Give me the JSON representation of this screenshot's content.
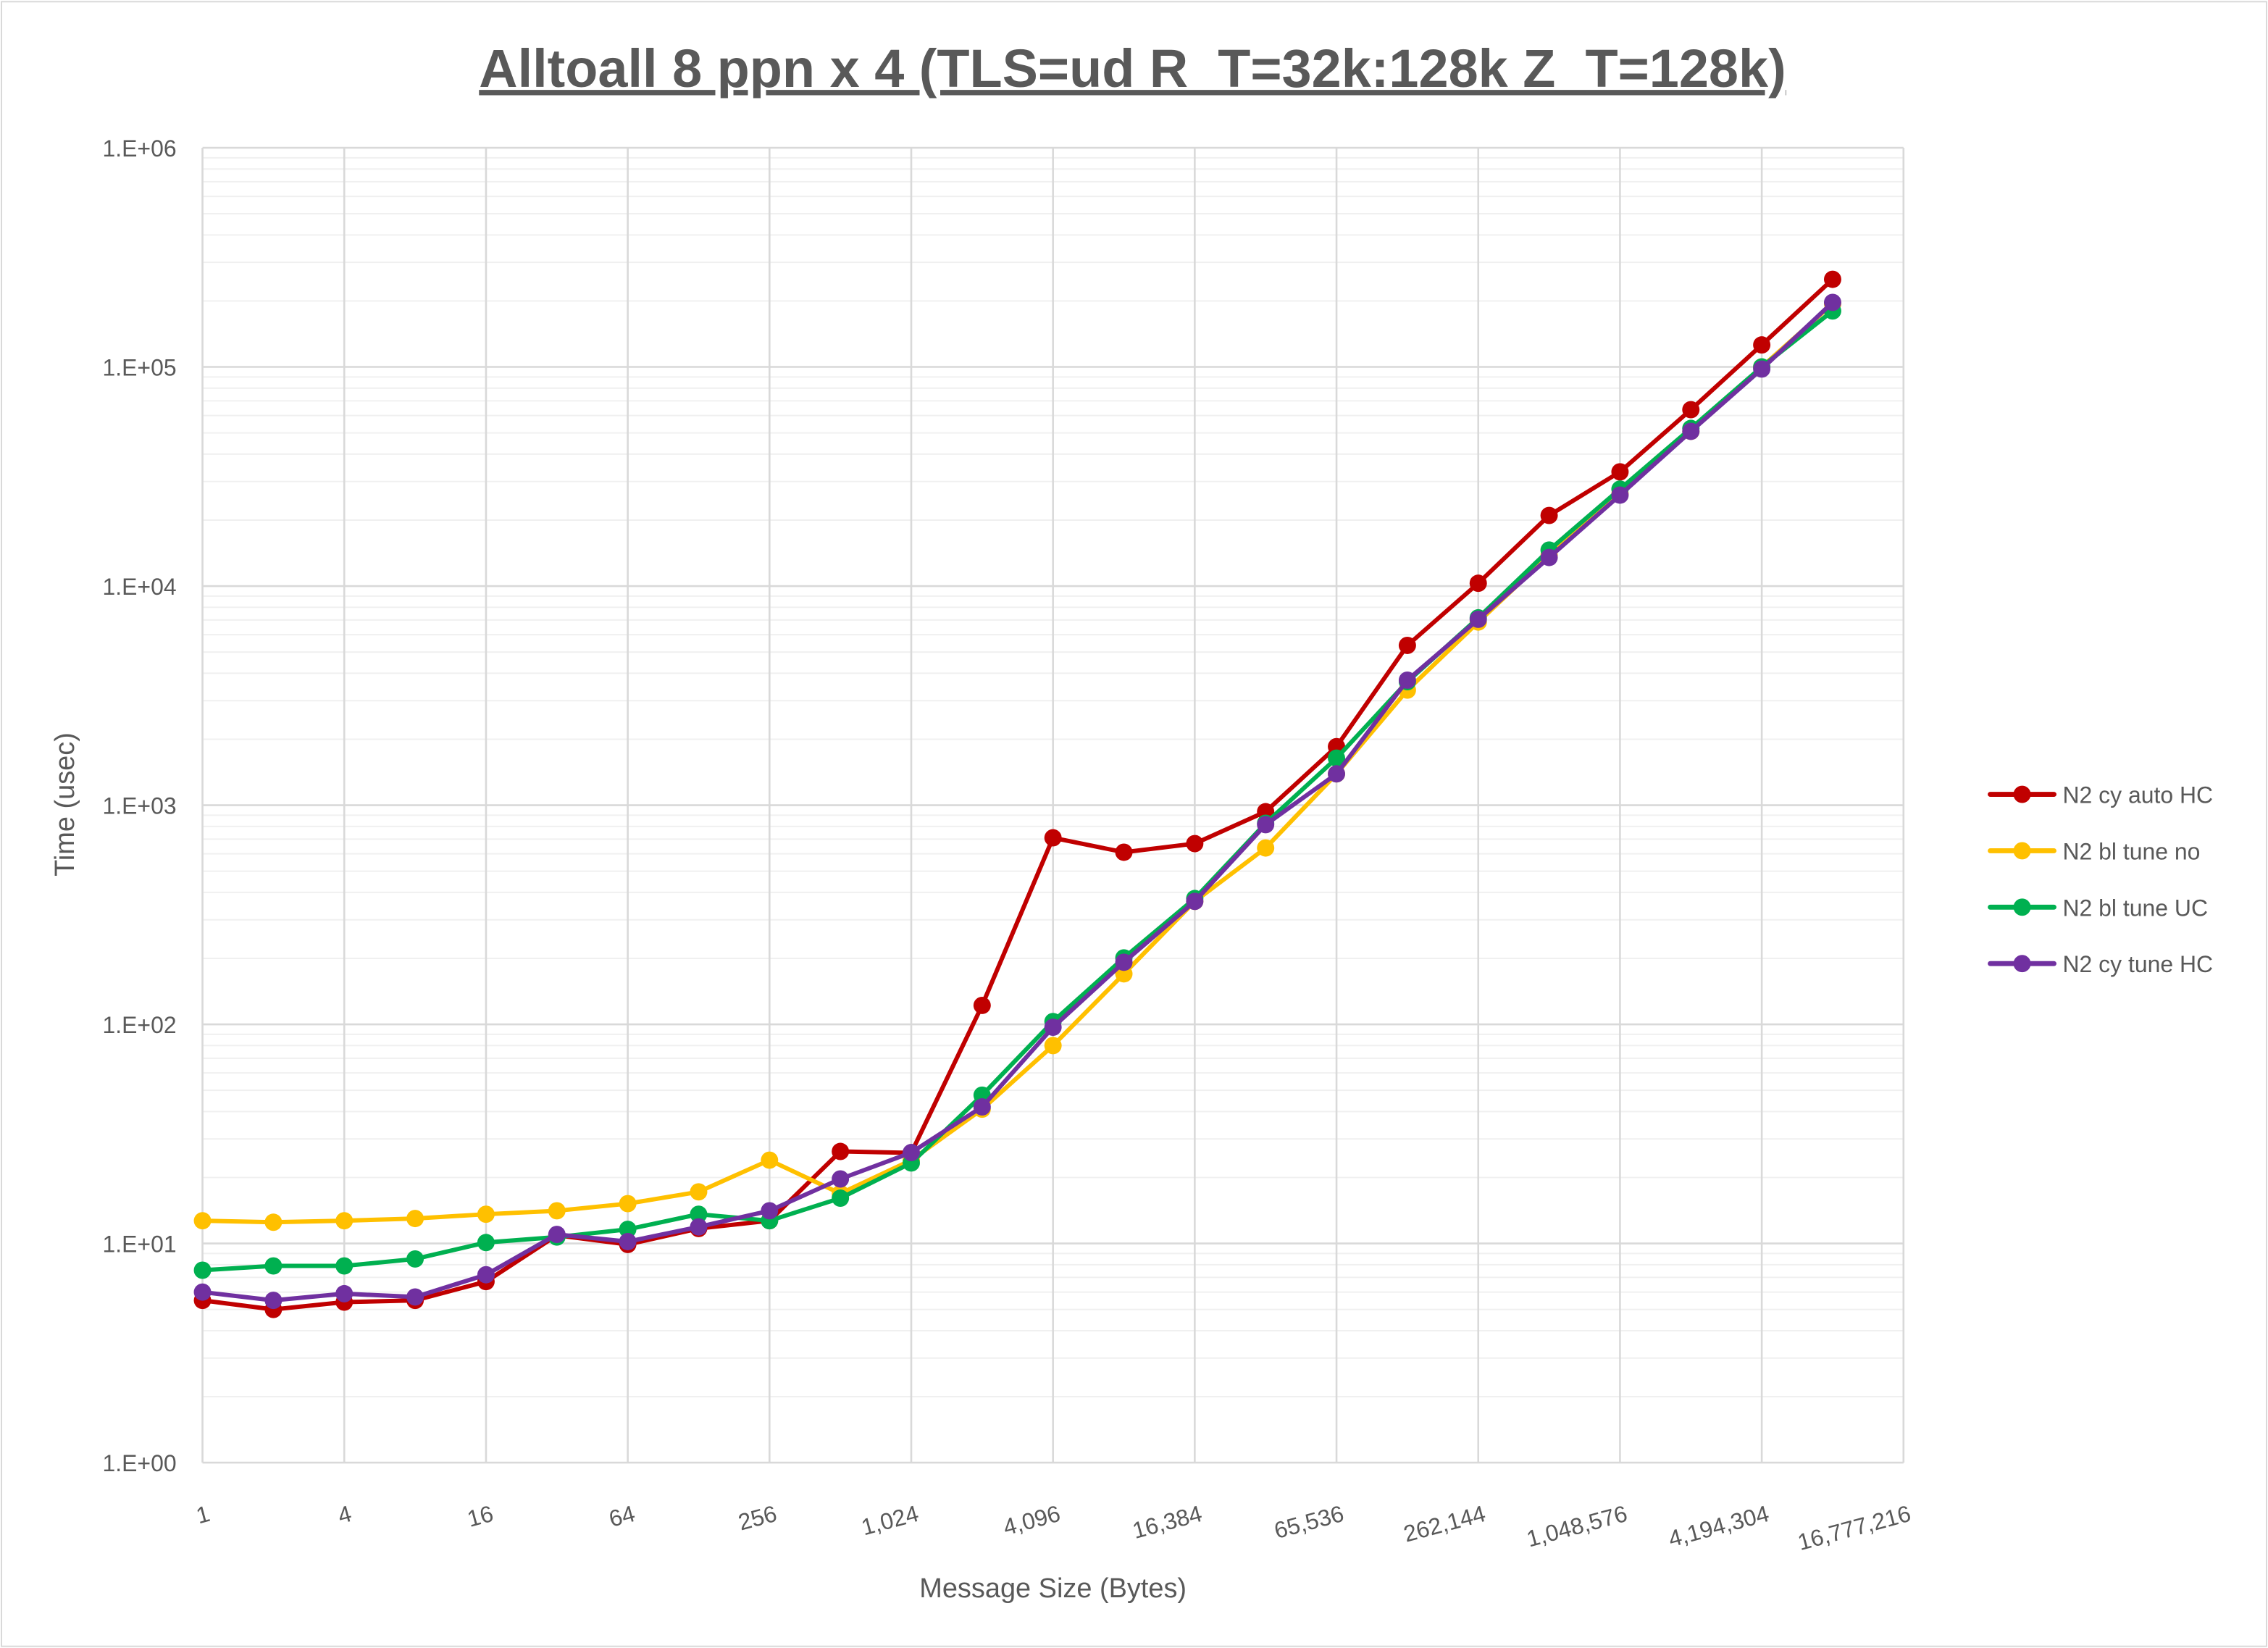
{
  "chart_data": {
    "type": "line",
    "title": "Alltoall 8 ppn x 4 (TLS=ud R_T=32k:128k Z_T=128k)",
    "xlabel": "Message Size (Bytes)",
    "ylabel": "Time (usec)",
    "x_scale": "log2",
    "y_scale": "log10",
    "ylim": [
      1,
      1000000
    ],
    "xlim": [
      1,
      16777216
    ],
    "grid": true,
    "legend_position": "right",
    "y_tick_labels": [
      "1.E+00",
      "1.E+01",
      "1.E+02",
      "1.E+03",
      "1.E+04",
      "1.E+05",
      "1.E+06"
    ],
    "x_tick_labels": [
      "1",
      "4",
      "16",
      "64",
      "256",
      "1,024",
      "4,096",
      "16,384",
      "65,536",
      "262,144",
      "1,048,576",
      "4,194,304",
      "16,777,216"
    ],
    "x": [
      1,
      2,
      4,
      8,
      16,
      32,
      64,
      128,
      256,
      512,
      1024,
      2048,
      4096,
      8192,
      16384,
      32768,
      65536,
      131072,
      262144,
      524288,
      1048576,
      2097152,
      4194304,
      8388608
    ],
    "series": [
      {
        "name": "N2 cy auto HC",
        "color": "#C00000",
        "values": [
          5.5,
          5.0,
          5.4,
          5.5,
          6.7,
          10.9,
          9.9,
          11.7,
          12.7,
          26.3,
          25.9,
          122,
          710,
          610,
          668,
          934,
          1850,
          5360,
          10300,
          21000,
          33200,
          63800,
          126000,
          251000
        ]
      },
      {
        "name": "N2 bl tune no",
        "color": "#FFC000",
        "values": [
          12.7,
          12.5,
          12.7,
          13.0,
          13.6,
          14.1,
          15.2,
          17.2,
          24,
          16.9,
          24,
          41,
          80,
          170,
          364,
          638,
          1390,
          3350,
          6850,
          13800,
          26400,
          50800,
          100000,
          194000
        ]
      },
      {
        "name": "N2 bl tune UC",
        "color": "#00B050",
        "values": [
          7.55,
          7.9,
          7.9,
          8.5,
          10.1,
          10.7,
          11.6,
          13.6,
          12.7,
          16.1,
          23.3,
          47.5,
          103,
          201,
          375,
          827,
          1640,
          3660,
          7160,
          14600,
          27700,
          52400,
          100000,
          180000
        ]
      },
      {
        "name": "N2 cy tune HC",
        "color": "#7030A0",
        "values": [
          6.0,
          5.5,
          5.9,
          5.7,
          7.2,
          11.0,
          10.2,
          11.9,
          14.1,
          19.7,
          26,
          42,
          97,
          192,
          364,
          815,
          1390,
          3720,
          7050,
          13500,
          26000,
          50800,
          97800,
          197000
        ]
      }
    ]
  }
}
